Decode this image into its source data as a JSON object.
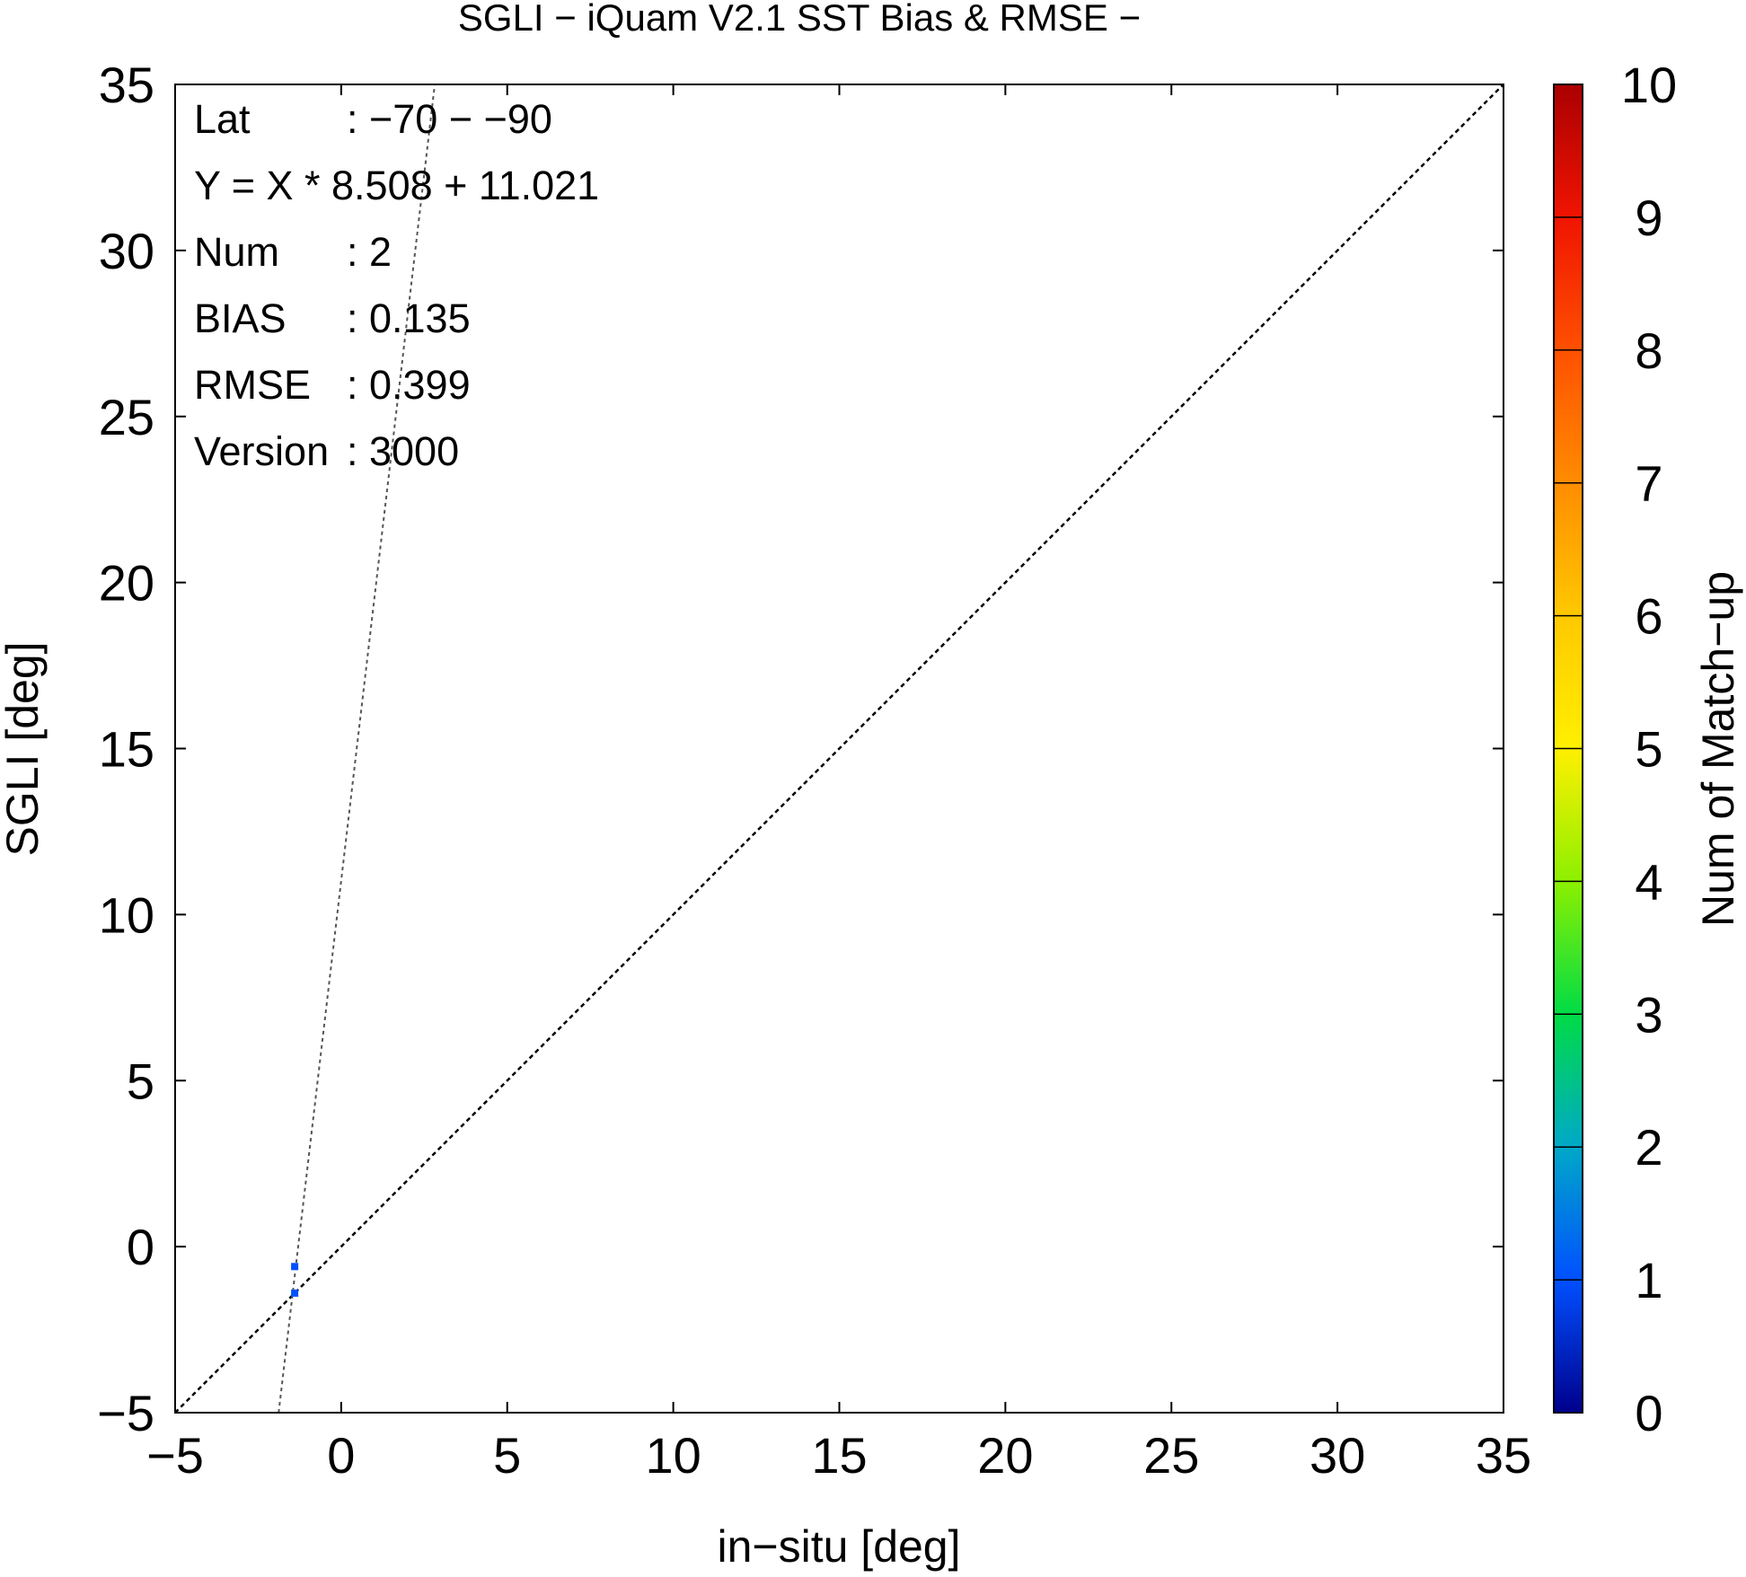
{
  "chart_data": {
    "type": "scatter",
    "title": "SGLI − iQuam V2.1 SST Bias & RMSE  −",
    "xlabel": "in−situ [deg]",
    "ylabel": "SGLI [deg]",
    "xlim": [
      -5,
      35
    ],
    "ylim": [
      -5,
      35
    ],
    "x_ticks": [
      -5,
      0,
      5,
      10,
      15,
      20,
      25,
      30,
      35
    ],
    "y_ticks": [
      -5,
      0,
      5,
      10,
      15,
      20,
      25,
      30,
      35
    ],
    "x_tick_labels": [
      "−5",
      "0",
      "5",
      "10",
      "15",
      "20",
      "25",
      "30",
      "35"
    ],
    "y_tick_labels": [
      "−5",
      "0",
      "5",
      "10",
      "15",
      "20",
      "25",
      "30",
      "35"
    ],
    "grid": false,
    "points": [
      {
        "x": -1.4,
        "y": -0.6,
        "count": 1
      },
      {
        "x": -1.4,
        "y": -1.4,
        "count": 1
      }
    ],
    "reference_lines": [
      {
        "kind": "identity",
        "slope": 1,
        "intercept": 0,
        "style": "dotted"
      },
      {
        "kind": "regression",
        "slope": 8.508,
        "intercept": 11.021,
        "style": "dotted"
      }
    ],
    "stats": [
      {
        "label": "Lat",
        "value": ": −70 − −90"
      },
      {
        "label": "Y = X * 8.508 + 11.021",
        "value": ""
      },
      {
        "label": "Num",
        "value": ": 2"
      },
      {
        "label": "BIAS",
        "value": ": 0.135"
      },
      {
        "label": "RMSE",
        "value": ": 0.399"
      },
      {
        "label": "Version",
        "value": ": 3000"
      }
    ],
    "colorbar": {
      "label": "Num of Match−up",
      "range": [
        0,
        10
      ],
      "ticks": [
        0,
        1,
        2,
        3,
        4,
        5,
        6,
        7,
        8,
        9,
        10
      ],
      "tick_labels": [
        "0",
        "1",
        "2",
        "3",
        "4",
        "5",
        "6",
        "7",
        "8",
        "9",
        "10"
      ],
      "colors": [
        "#00008c",
        "#0050ff",
        "#00a8c8",
        "#00dc46",
        "#8cf000",
        "#fff000",
        "#ffc800",
        "#ff8c00",
        "#ff5000",
        "#f01400",
        "#aa0000"
      ]
    }
  }
}
